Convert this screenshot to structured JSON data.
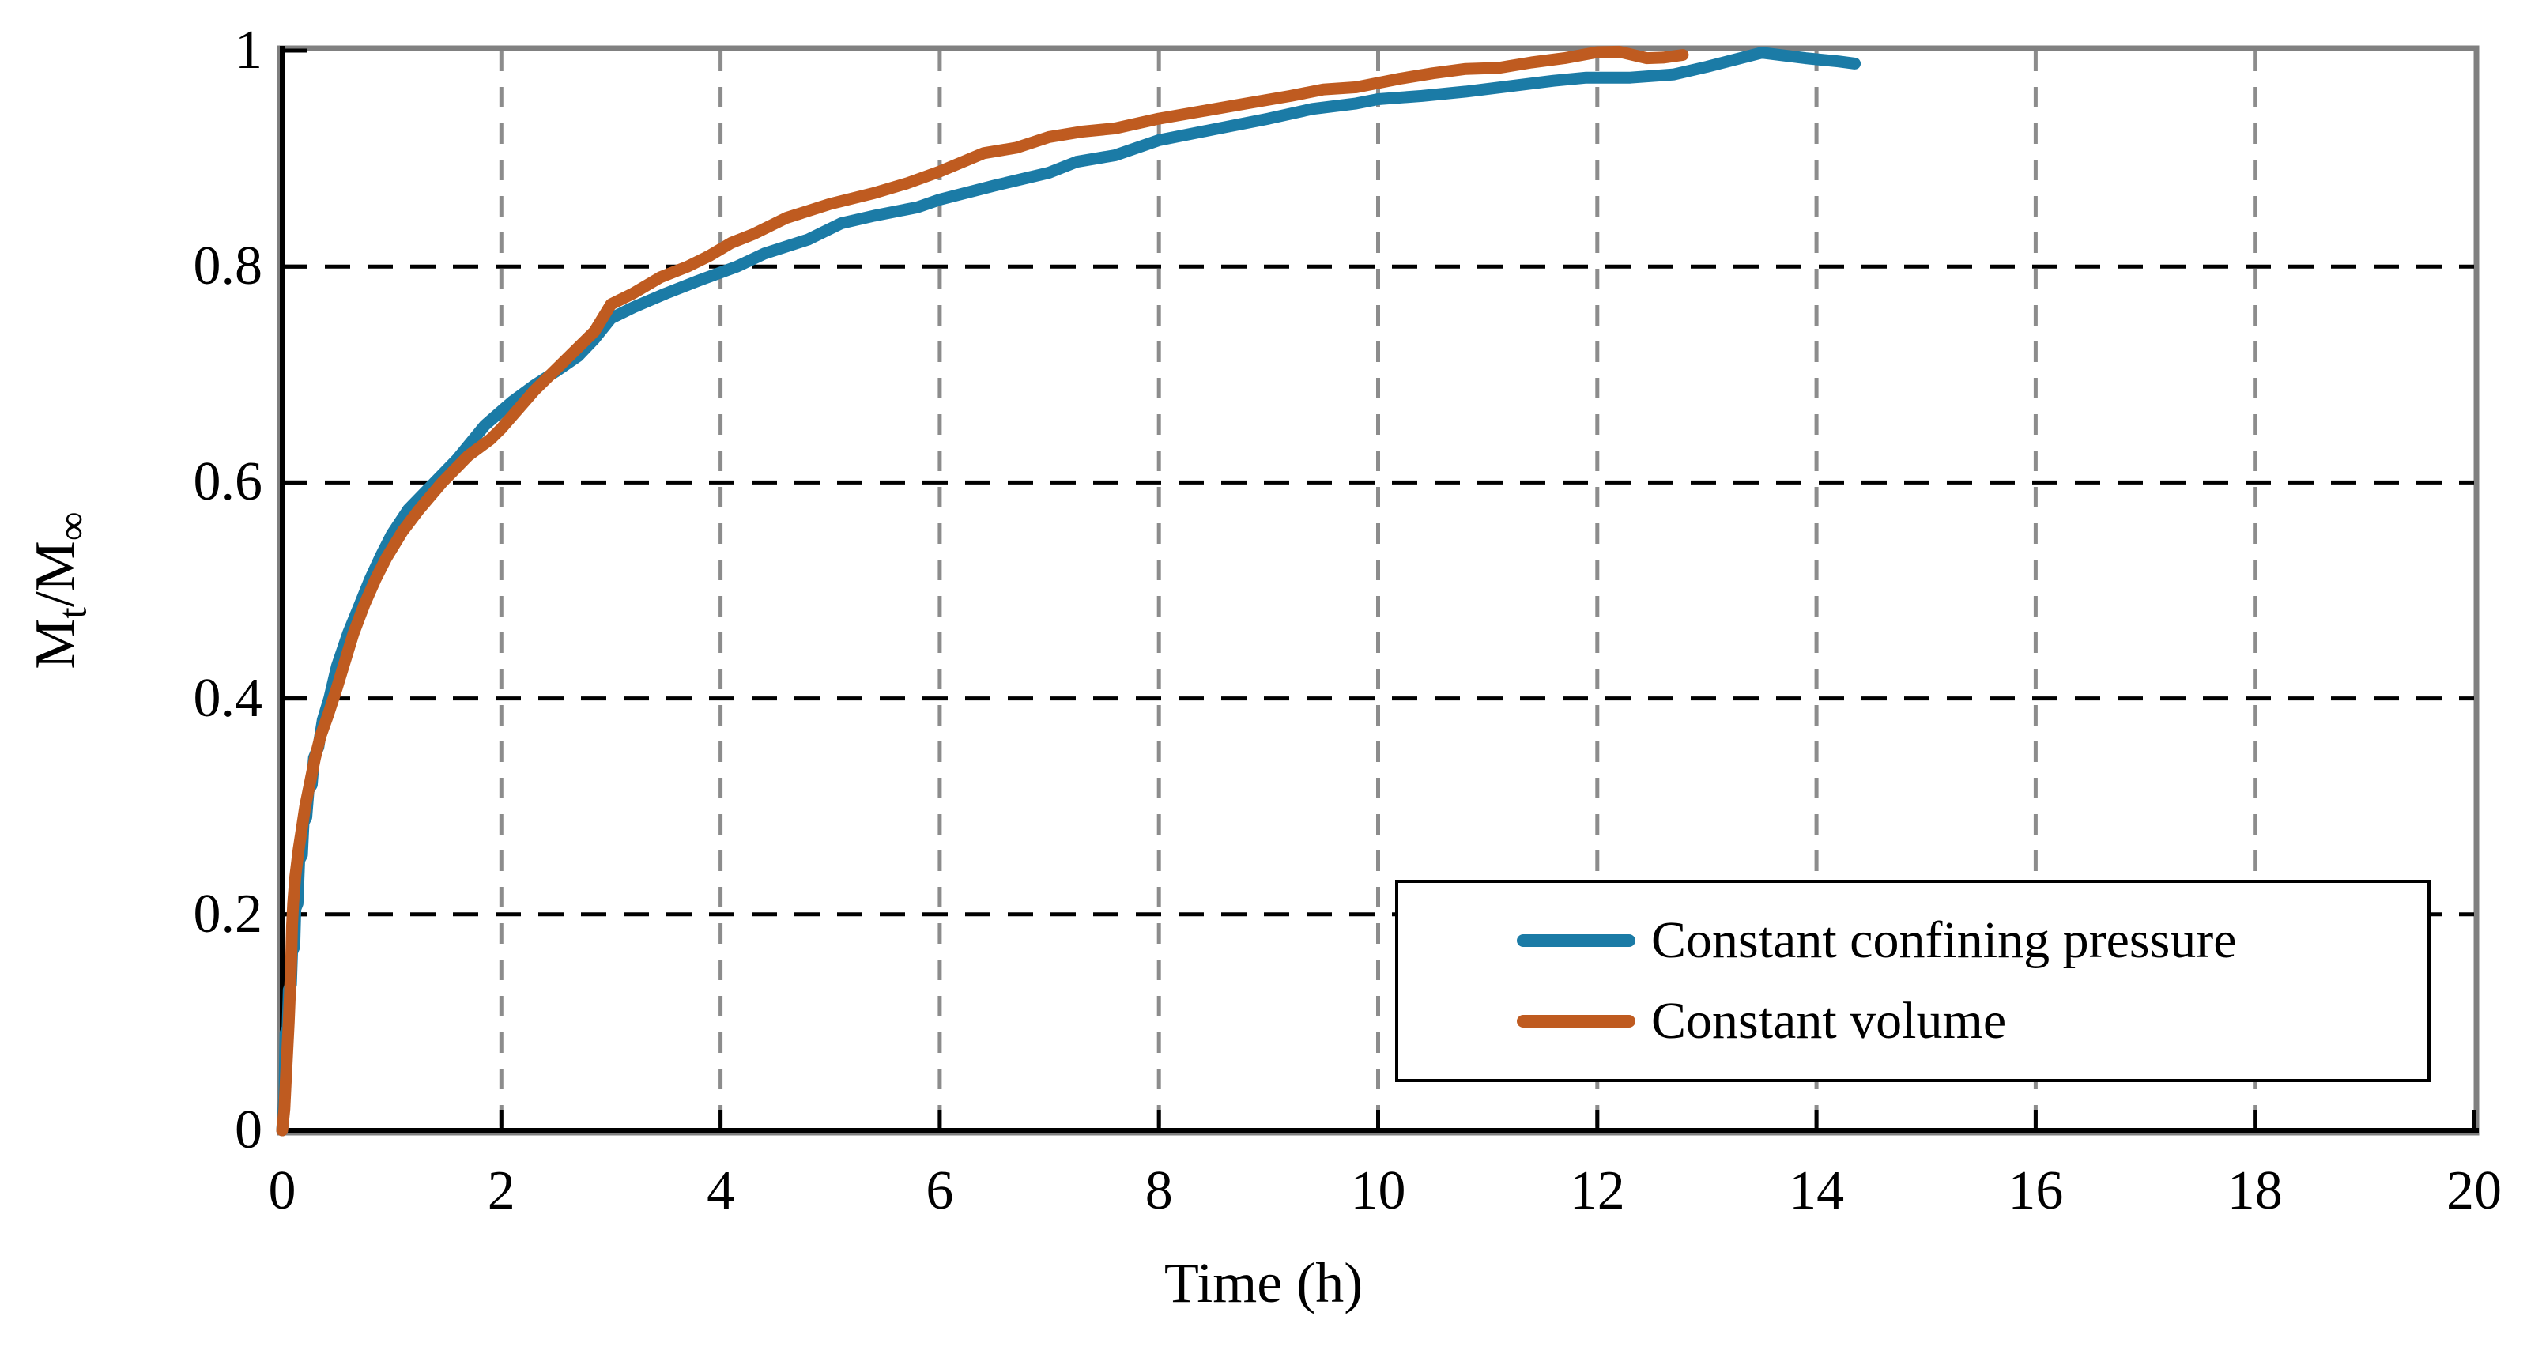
{
  "figure": {
    "background": "#ffffff"
  },
  "chart_data": {
    "type": "line",
    "title": "",
    "xlabel": "Time (h)",
    "ylabel": {
      "base": "M",
      "sub1": "t",
      "mid": "/M",
      "sub2": "∞"
    },
    "xlim": [
      0,
      20
    ],
    "ylim": [
      0,
      1
    ],
    "x_ticks": {
      "values": [
        0,
        2,
        4,
        6,
        8,
        10,
        12,
        14,
        16,
        18,
        20
      ],
      "labels": [
        "0",
        "2",
        "4",
        "6",
        "8",
        "10",
        "12",
        "14",
        "16",
        "18",
        "20"
      ]
    },
    "y_ticks": {
      "values": [
        0,
        0.2,
        0.4,
        0.6,
        0.8,
        1.0
      ],
      "labels": [
        "0",
        "0.2",
        "0.4",
        "0.6",
        "0.8",
        "1"
      ]
    },
    "grid": {
      "horizontal_color": "#000000",
      "horizontal_dash": "32 22",
      "vertical_color": "#8C8C8C",
      "vertical_dash": "26 20",
      "border_color": "#808080",
      "axis_color": "#000000"
    },
    "legend": {
      "position": "bottom-right"
    },
    "series": [
      {
        "name": "Constant confining pressure",
        "color": "#1B7BA6",
        "points": [
          [
            0,
            0
          ],
          [
            0.02,
            0.03
          ],
          [
            0.03,
            0.09
          ],
          [
            0.05,
            0.095
          ],
          [
            0.06,
            0.13
          ],
          [
            0.08,
            0.135
          ],
          [
            0.09,
            0.165
          ],
          [
            0.11,
            0.17
          ],
          [
            0.12,
            0.205
          ],
          [
            0.14,
            0.21
          ],
          [
            0.155,
            0.25
          ],
          [
            0.18,
            0.255
          ],
          [
            0.195,
            0.285
          ],
          [
            0.22,
            0.29
          ],
          [
            0.24,
            0.315
          ],
          [
            0.27,
            0.32
          ],
          [
            0.29,
            0.345
          ],
          [
            0.33,
            0.355
          ],
          [
            0.37,
            0.38
          ],
          [
            0.43,
            0.4
          ],
          [
            0.5,
            0.43
          ],
          [
            0.6,
            0.46
          ],
          [
            0.7,
            0.485
          ],
          [
            0.8,
            0.51
          ],
          [
            0.9,
            0.532
          ],
          [
            1.0,
            0.552
          ],
          [
            1.15,
            0.575
          ],
          [
            1.39,
            0.6
          ],
          [
            1.6,
            0.622
          ],
          [
            1.85,
            0.653
          ],
          [
            2.1,
            0.675
          ],
          [
            2.3,
            0.69
          ],
          [
            2.5,
            0.703
          ],
          [
            2.7,
            0.717
          ],
          [
            2.85,
            0.733
          ],
          [
            3.0,
            0.752
          ],
          [
            3.2,
            0.762
          ],
          [
            3.5,
            0.775
          ],
          [
            3.8,
            0.787
          ],
          [
            4.15,
            0.8
          ],
          [
            4.4,
            0.812
          ],
          [
            4.8,
            0.825
          ],
          [
            5.1,
            0.84
          ],
          [
            5.4,
            0.847
          ],
          [
            5.8,
            0.855
          ],
          [
            6.0,
            0.862
          ],
          [
            6.5,
            0.875
          ],
          [
            7.0,
            0.887
          ],
          [
            7.25,
            0.897
          ],
          [
            7.6,
            0.903
          ],
          [
            8.0,
            0.917
          ],
          [
            8.5,
            0.927
          ],
          [
            9.0,
            0.937
          ],
          [
            9.4,
            0.946
          ],
          [
            9.8,
            0.951
          ],
          [
            10.0,
            0.955
          ],
          [
            10.4,
            0.958
          ],
          [
            10.8,
            0.962
          ],
          [
            11.2,
            0.967
          ],
          [
            11.6,
            0.972
          ],
          [
            11.9,
            0.975
          ],
          [
            12.3,
            0.975
          ],
          [
            12.7,
            0.978
          ],
          [
            13.0,
            0.985
          ],
          [
            13.5,
            0.998
          ],
          [
            13.9,
            0.993
          ],
          [
            14.2,
            0.99
          ],
          [
            14.35,
            0.988
          ]
        ]
      },
      {
        "name": "Constant volume",
        "color": "#BF5B20",
        "points": [
          [
            0,
            0
          ],
          [
            0.02,
            0.02
          ],
          [
            0.04,
            0.06
          ],
          [
            0.06,
            0.1
          ],
          [
            0.08,
            0.15
          ],
          [
            0.09,
            0.19
          ],
          [
            0.1,
            0.21
          ],
          [
            0.12,
            0.235
          ],
          [
            0.15,
            0.26
          ],
          [
            0.18,
            0.28
          ],
          [
            0.21,
            0.3
          ],
          [
            0.25,
            0.32
          ],
          [
            0.3,
            0.345
          ],
          [
            0.35,
            0.365
          ],
          [
            0.42,
            0.385
          ],
          [
            0.5,
            0.41
          ],
          [
            0.56,
            0.43
          ],
          [
            0.65,
            0.46
          ],
          [
            0.75,
            0.487
          ],
          [
            0.85,
            0.51
          ],
          [
            0.95,
            0.53
          ],
          [
            1.1,
            0.555
          ],
          [
            1.25,
            0.575
          ],
          [
            1.46,
            0.6
          ],
          [
            1.7,
            0.625
          ],
          [
            1.9,
            0.64
          ],
          [
            2.0,
            0.65
          ],
          [
            2.3,
            0.685
          ],
          [
            2.6,
            0.715
          ],
          [
            2.85,
            0.74
          ],
          [
            3.0,
            0.765
          ],
          [
            3.2,
            0.775
          ],
          [
            3.45,
            0.79
          ],
          [
            3.7,
            0.8
          ],
          [
            3.9,
            0.81
          ],
          [
            4.1,
            0.822
          ],
          [
            4.3,
            0.83
          ],
          [
            4.6,
            0.845
          ],
          [
            5.0,
            0.858
          ],
          [
            5.4,
            0.868
          ],
          [
            5.7,
            0.877
          ],
          [
            6.0,
            0.888
          ],
          [
            6.4,
            0.905
          ],
          [
            6.7,
            0.91
          ],
          [
            7.0,
            0.92
          ],
          [
            7.3,
            0.925
          ],
          [
            7.6,
            0.928
          ],
          [
            8.0,
            0.937
          ],
          [
            8.4,
            0.944
          ],
          [
            8.8,
            0.951
          ],
          [
            9.2,
            0.958
          ],
          [
            9.5,
            0.964
          ],
          [
            9.8,
            0.966
          ],
          [
            10.2,
            0.974
          ],
          [
            10.5,
            0.979
          ],
          [
            10.8,
            0.983
          ],
          [
            11.1,
            0.984
          ],
          [
            11.4,
            0.989
          ],
          [
            11.7,
            0.993
          ],
          [
            12.0,
            0.9985
          ],
          [
            12.2,
            0.999
          ],
          [
            12.45,
            0.993
          ],
          [
            12.6,
            0.9935
          ],
          [
            12.78,
            0.996
          ]
        ]
      }
    ],
    "line_width": 15
  }
}
